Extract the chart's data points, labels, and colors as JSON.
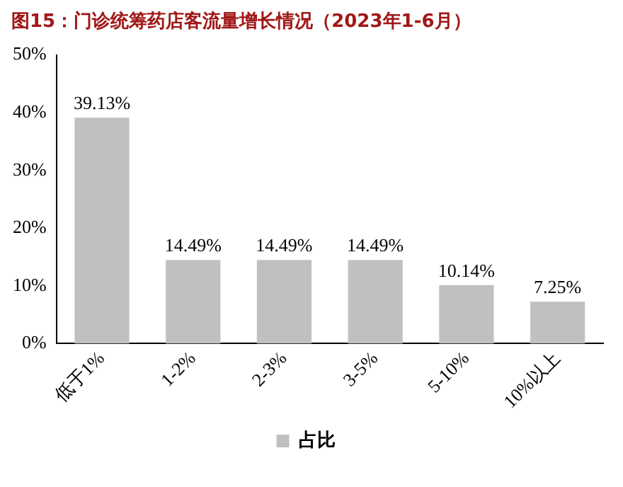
{
  "chart_data": {
    "type": "bar",
    "title": "图15：门诊统筹药店客流量增长情况（2023年1-6月）",
    "categories": [
      "低于1%",
      "1-2%",
      "2-3%",
      "3-5%",
      "5-10%",
      "10%以上"
    ],
    "series": [
      {
        "name": "占比",
        "color": "#c0c0c0",
        "values": [
          39.13,
          14.49,
          14.49,
          14.49,
          10.14,
          7.25
        ],
        "value_labels": [
          "39.13%",
          "14.49%",
          "14.49%",
          "14.49%",
          "10.14%",
          "7.25%"
        ]
      }
    ],
    "ylim": [
      0,
      50
    ],
    "yticks": [
      {
        "value": 0,
        "label": "0%"
      },
      {
        "value": 10,
        "label": "10%"
      },
      {
        "value": 20,
        "label": "20%"
      },
      {
        "value": 30,
        "label": "30%"
      },
      {
        "value": 40,
        "label": "40%"
      },
      {
        "value": 50,
        "label": "50%"
      }
    ],
    "grid": false,
    "legend": "bottom"
  }
}
